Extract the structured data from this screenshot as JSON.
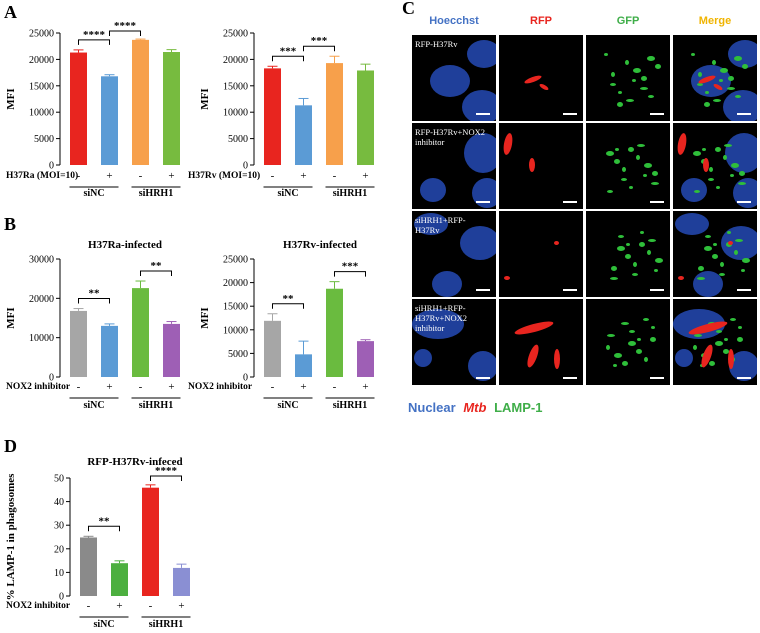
{
  "panel_labels": {
    "a": "A",
    "b": "B",
    "c": "C",
    "d": "D"
  },
  "chart_data": [
    {
      "id": "A1",
      "type": "bar",
      "title": "",
      "ylabel": "MFI",
      "ylim": [
        0,
        25000
      ],
      "yticks": [
        "0",
        "5000",
        "10000",
        "15000",
        "20000",
        "25000"
      ],
      "treatment_label": "H37Ra (MOI=10)",
      "treatment_signs": [
        "-",
        "+",
        "-",
        "+"
      ],
      "groups": [
        "siNC",
        "siHRH1"
      ],
      "values": [
        21300,
        16800,
        23700,
        21400
      ],
      "errors": [
        500,
        300,
        150,
        450
      ],
      "colors": [
        "#e8251f",
        "#5b9bd5",
        "#f7a04b",
        "#77bb3f"
      ],
      "significance": [
        {
          "from": 0,
          "to": 1,
          "label": "****"
        },
        {
          "from": 1,
          "to": 2,
          "label": "****"
        }
      ]
    },
    {
      "id": "A2",
      "type": "bar",
      "title": "",
      "ylabel": "MFI",
      "ylim": [
        0,
        25000
      ],
      "yticks": [
        "0",
        "5000",
        "10000",
        "15000",
        "20000",
        "25000"
      ],
      "treatment_label": "H37Rv (MOI=10)",
      "treatment_signs": [
        "-",
        "+",
        "-",
        "+"
      ],
      "groups": [
        "siNC",
        "siHRH1"
      ],
      "values": [
        18300,
        11300,
        19300,
        17900
      ],
      "errors": [
        400,
        1300,
        1300,
        1200
      ],
      "colors": [
        "#e8251f",
        "#5b9bd5",
        "#f7a04b",
        "#77bb3f"
      ],
      "significance": [
        {
          "from": 0,
          "to": 1,
          "label": "***"
        },
        {
          "from": 1,
          "to": 2,
          "label": "***"
        }
      ]
    },
    {
      "id": "B1",
      "type": "bar",
      "title": "H37Ra-infected",
      "ylabel": "MFI",
      "ylim": [
        0,
        30000
      ],
      "yticks": [
        "0",
        "10000",
        "20000",
        "30000"
      ],
      "treatment_label": "NOX2 inhibitor",
      "treatment_signs": [
        "-",
        "+",
        "-",
        "+"
      ],
      "groups": [
        "siNC",
        "siHRH1"
      ],
      "values": [
        16800,
        13000,
        22600,
        13500
      ],
      "errors": [
        600,
        500,
        1800,
        600
      ],
      "colors": [
        "#a6a6a6",
        "#5b9bd5",
        "#6abb3f",
        "#9e5fb5"
      ],
      "significance": [
        {
          "from": 0,
          "to": 1,
          "label": "**"
        },
        {
          "from": 2,
          "to": 3,
          "label": "**"
        }
      ]
    },
    {
      "id": "B2",
      "type": "bar",
      "title": "H37Rv-infected",
      "ylabel": "MFI",
      "ylim": [
        0,
        25000
      ],
      "yticks": [
        "0",
        "5000",
        "10000",
        "15000",
        "20000",
        "25000"
      ],
      "treatment_label": "NOX2 inhibitor",
      "treatment_signs": [
        "-",
        "+",
        "-",
        "+"
      ],
      "groups": [
        "siNC",
        "siHRH1"
      ],
      "values": [
        11900,
        4800,
        18700,
        7600
      ],
      "errors": [
        1500,
        2800,
        1500,
        300
      ],
      "colors": [
        "#a6a6a6",
        "#5b9bd5",
        "#6abb3f",
        "#9e5fb5"
      ],
      "significance": [
        {
          "from": 0,
          "to": 1,
          "label": "**"
        },
        {
          "from": 2,
          "to": 3,
          "label": "***"
        }
      ]
    },
    {
      "id": "D",
      "type": "bar",
      "title": "RFP-H37Rv-infeced",
      "ylabel": "% LAMP-1 in phagosomes",
      "ylim": [
        0,
        50
      ],
      "yticks": [
        "0",
        "10",
        "20",
        "30",
        "40",
        "50"
      ],
      "treatment_label": "NOX2 inhibitor",
      "treatment_signs": [
        "-",
        "+",
        "-",
        "+"
      ],
      "groups": [
        "siNC",
        "siHRH1"
      ],
      "values": [
        24.8,
        13.9,
        45.9,
        11.9
      ],
      "errors": [
        0.5,
        1.0,
        1.2,
        1.6
      ],
      "colors": [
        "#8a8a8a",
        "#4caf3f",
        "#e8251f",
        "#8a8fd3"
      ],
      "significance": [
        {
          "from": 0,
          "to": 1,
          "label": "**"
        },
        {
          "from": 2,
          "to": 3,
          "label": "****"
        }
      ]
    }
  ],
  "microscopy": {
    "column_headers": [
      {
        "text": "Hoecchst",
        "color": "#4472c4"
      },
      {
        "text": "RFP",
        "color": "#e8251f"
      },
      {
        "text": "GFP",
        "color": "#3fae49"
      },
      {
        "text": "Merge",
        "color": "#f0b400"
      }
    ],
    "row_labels": [
      "RFP-H37Rv",
      "RFP-H37Rv+NOX2\ninhibitor",
      "siHRH1+RFP-\nH37Rv",
      "siHRH1+RFP-\nH37Rv+NOX2\ninhibitor"
    ],
    "legend": [
      {
        "text": "Nuclear",
        "color": "#4472c4",
        "italic": false
      },
      {
        "text": "Mtb",
        "color": "#e8251f",
        "italic": true
      },
      {
        "text": "LAMP-1",
        "color": "#3fae49",
        "italic": false
      }
    ]
  }
}
